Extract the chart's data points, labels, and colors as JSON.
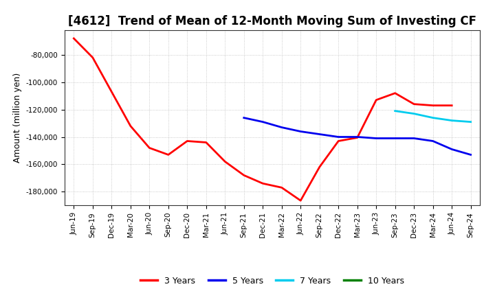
{
  "title": "[4612]  Trend of Mean of 12-Month Moving Sum of Investing CF",
  "ylabel": "Amount (million yen)",
  "ylim": [
    -190000,
    -62000
  ],
  "yticks": [
    -180000,
    -160000,
    -140000,
    -120000,
    -100000,
    -80000
  ],
  "background_color": "#FFFFFF",
  "plot_bg_color": "#FFFFFF",
  "grid_color": "#AAAAAA",
  "series": {
    "3years": {
      "color": "#FF0000",
      "label": "3 Years",
      "x": [
        "Jun-19",
        "Sep-19",
        "Dec-19",
        "Mar-20",
        "Jun-20",
        "Sep-20",
        "Dec-20",
        "Mar-21",
        "Jun-21",
        "Sep-21",
        "Dec-21",
        "Mar-22",
        "Jun-22",
        "Sep-22",
        "Dec-22",
        "Mar-23",
        "Jun-23",
        "Sep-23",
        "Dec-23",
        "Mar-24",
        "Jun-24"
      ],
      "y": [
        -68000,
        -82000,
        -107000,
        -132000,
        -148000,
        -153000,
        -143000,
        -144000,
        -158000,
        -168000,
        -174000,
        -177000,
        -186500,
        -162000,
        -143000,
        -140500,
        -113000,
        -108000,
        -116000,
        -117000,
        -117000
      ]
    },
    "5years": {
      "color": "#0000EE",
      "label": "5 Years",
      "x": [
        "Sep-21",
        "Dec-21",
        "Mar-22",
        "Jun-22",
        "Sep-22",
        "Dec-22",
        "Mar-23",
        "Jun-23",
        "Sep-23",
        "Dec-23",
        "Mar-24",
        "Jun-24",
        "Sep-24"
      ],
      "y": [
        -126000,
        -129000,
        -133000,
        -136000,
        -138000,
        -140000,
        -140000,
        -141000,
        -141000,
        -141000,
        -143000,
        -149000,
        -153000
      ]
    },
    "7years": {
      "color": "#00CCEE",
      "label": "7 Years",
      "x": [
        "Sep-23",
        "Dec-23",
        "Mar-24",
        "Jun-24",
        "Sep-24"
      ],
      "y": [
        -121000,
        -123000,
        -126000,
        -128000,
        -129000
      ]
    },
    "10years": {
      "color": "#008000",
      "label": "10 Years",
      "x": [],
      "y": []
    }
  },
  "xticks": [
    "Jun-19",
    "Sep-19",
    "Dec-19",
    "Mar-20",
    "Jun-20",
    "Sep-20",
    "Dec-20",
    "Mar-21",
    "Jun-21",
    "Sep-21",
    "Dec-21",
    "Mar-22",
    "Jun-22",
    "Sep-22",
    "Dec-22",
    "Mar-23",
    "Jun-23",
    "Sep-23",
    "Dec-23",
    "Mar-24",
    "Jun-24",
    "Sep-24"
  ],
  "legend_entries": [
    "3 Years",
    "5 Years",
    "7 Years",
    "10 Years"
  ],
  "legend_colors": [
    "#FF0000",
    "#0000EE",
    "#00CCEE",
    "#008000"
  ],
  "linewidth": 2.0,
  "title_fontsize": 12,
  "ylabel_fontsize": 9,
  "tick_fontsize": 7.5,
  "legend_fontsize": 9
}
